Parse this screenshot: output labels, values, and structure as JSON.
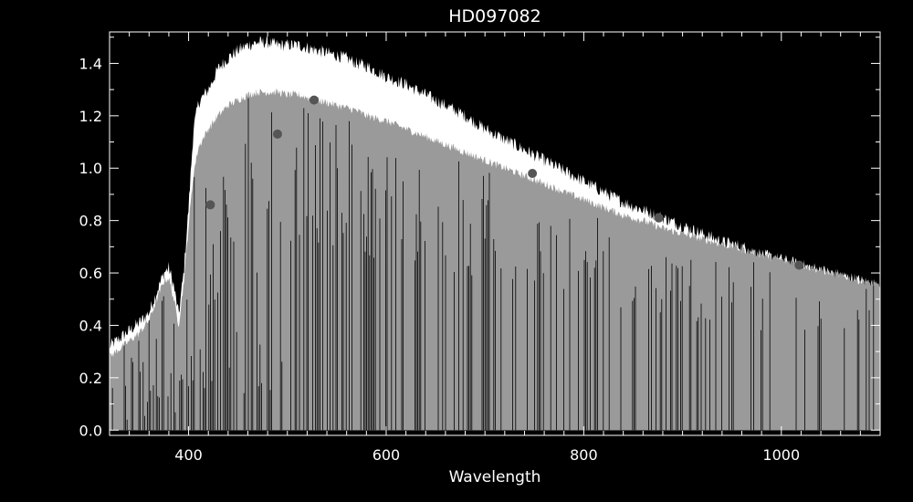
{
  "chart_data": {
    "type": "line",
    "title": "HD097082",
    "xlabel": "Wavelength",
    "ylabel": "",
    "xlim": [
      320,
      1100
    ],
    "ylim": [
      -0.02,
      1.52
    ],
    "x_ticks": [
      400,
      600,
      800,
      1000
    ],
    "y_ticks": [
      0.0,
      0.2,
      0.4,
      0.6,
      0.8,
      1.0,
      1.2,
      1.4
    ],
    "background": "#000000",
    "axis_color": "#ffffff",
    "series": [
      {
        "style": "white-spectrum",
        "color": "#ffffff",
        "x": [
          320,
          330,
          340,
          350,
          360,
          370,
          375,
          380,
          385,
          390,
          395,
          400,
          405,
          410,
          420,
          430,
          440,
          450,
          460,
          470,
          480,
          490,
          500,
          510,
          520,
          530,
          540,
          550,
          560,
          570,
          580,
          590,
          600,
          620,
          640,
          660,
          680,
          700,
          720,
          740,
          760,
          780,
          800,
          820,
          840,
          860,
          880,
          900,
          920,
          940,
          960,
          980,
          1000,
          1020,
          1040,
          1060,
          1080,
          1100
        ],
        "values": [
          0.32,
          0.35,
          0.38,
          0.41,
          0.45,
          0.55,
          0.6,
          0.62,
          0.55,
          0.44,
          0.6,
          0.85,
          1.15,
          1.25,
          1.3,
          1.38,
          1.42,
          1.45,
          1.47,
          1.48,
          1.48,
          1.47,
          1.47,
          1.47,
          1.46,
          1.45,
          1.44,
          1.43,
          1.42,
          1.4,
          1.39,
          1.37,
          1.35,
          1.32,
          1.28,
          1.24,
          1.2,
          1.15,
          1.11,
          1.07,
          1.03,
          0.99,
          0.95,
          0.91,
          0.87,
          0.84,
          0.81,
          0.78,
          0.75,
          0.72,
          0.7,
          0.67,
          0.65,
          0.63,
          0.61,
          0.59,
          0.57,
          0.55
        ]
      },
      {
        "style": "gray-spectrum",
        "color": "#9a9a9a",
        "x": [
          320,
          330,
          340,
          350,
          360,
          370,
          375,
          380,
          385,
          390,
          395,
          400,
          405,
          410,
          420,
          430,
          440,
          450,
          460,
          470,
          480,
          490,
          500,
          510,
          520,
          530,
          540,
          550,
          560,
          570,
          580,
          590,
          600,
          620,
          640,
          660,
          680,
          700,
          720,
          740,
          760,
          780,
          800,
          820,
          840,
          860,
          880,
          900,
          920,
          940,
          960,
          980,
          1000,
          1020,
          1040,
          1060,
          1080,
          1100
        ],
        "values": [
          0.28,
          0.31,
          0.34,
          0.37,
          0.42,
          0.52,
          0.57,
          0.58,
          0.5,
          0.4,
          0.56,
          0.78,
          0.98,
          1.08,
          1.15,
          1.2,
          1.24,
          1.26,
          1.28,
          1.29,
          1.29,
          1.29,
          1.28,
          1.28,
          1.27,
          1.26,
          1.25,
          1.24,
          1.23,
          1.22,
          1.2,
          1.19,
          1.18,
          1.15,
          1.12,
          1.09,
          1.06,
          1.03,
          1.0,
          0.97,
          0.94,
          0.91,
          0.88,
          0.85,
          0.82,
          0.8,
          0.77,
          0.75,
          0.73,
          0.71,
          0.69,
          0.67,
          0.65,
          0.63,
          0.61,
          0.59,
          0.57,
          0.55
        ]
      },
      {
        "style": "points",
        "color": "#555555",
        "x": [
          422,
          490,
          527,
          748,
          876,
          1018
        ],
        "values": [
          0.86,
          1.13,
          1.26,
          0.98,
          0.81,
          0.63
        ]
      }
    ]
  }
}
